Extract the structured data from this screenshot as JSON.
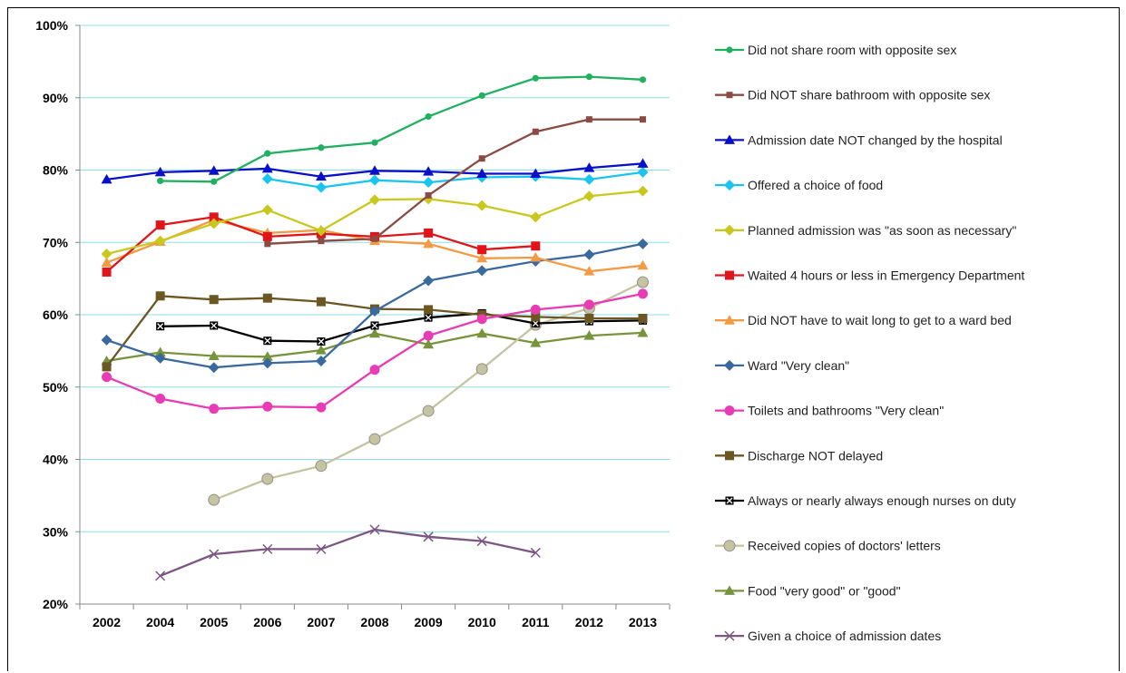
{
  "chart_data": {
    "type": "line",
    "title": "",
    "xlabel": "",
    "ylabel": "",
    "categories": [
      "2002",
      "2004",
      "2005",
      "2006",
      "2007",
      "2008",
      "2009",
      "2010",
      "2011",
      "2012",
      "2013"
    ],
    "ylim": [
      20,
      100
    ],
    "yticks": [
      "20%",
      "30%",
      "40%",
      "50%",
      "60%",
      "70%",
      "80%",
      "90%",
      "100%"
    ],
    "grid": true,
    "legend_position": "right",
    "series": [
      {
        "name": "Did not share room with opposite sex",
        "color": "#21b060",
        "marker": "circle-small",
        "values": [
          null,
          78.5,
          78.4,
          82.3,
          83.1,
          83.8,
          87.4,
          90.3,
          92.7,
          92.9,
          92.5
        ]
      },
      {
        "name": "Did NOT share bathroom with opposite sex",
        "color": "#8b4a43",
        "marker": "square-small",
        "values": [
          null,
          null,
          null,
          69.8,
          70.2,
          70.5,
          76.5,
          81.6,
          85.3,
          87.0,
          87.0
        ]
      },
      {
        "name": "Admission date NOT changed by the hospital",
        "color": "#0a10c8",
        "marker": "triangle",
        "values": [
          78.7,
          79.7,
          79.9,
          80.2,
          79.1,
          79.9,
          79.8,
          79.5,
          79.5,
          80.3,
          80.9
        ]
      },
      {
        "name": "Offered a choice of food",
        "color": "#1ac4f0",
        "marker": "diamond",
        "values": [
          null,
          null,
          null,
          78.8,
          77.6,
          78.6,
          78.3,
          79.0,
          79.1,
          78.7,
          79.7
        ]
      },
      {
        "name": "Planned admission was \"as soon as necessary\"",
        "color": "#c8c81e",
        "marker": "diamond",
        "values": [
          68.4,
          70.2,
          72.6,
          74.5,
          71.6,
          75.9,
          76.0,
          75.1,
          73.5,
          76.4,
          77.1
        ]
      },
      {
        "name": "Waited 4 hours or less in Emergency Department",
        "color": "#e0151a",
        "marker": "square",
        "values": [
          65.9,
          72.4,
          73.5,
          70.8,
          71.2,
          70.8,
          71.3,
          69.0,
          69.5,
          null,
          null
        ]
      },
      {
        "name": "Did NOT have to wait long to get to a ward bed",
        "color": "#f39a44",
        "marker": "triangle",
        "values": [
          67.2,
          70.1,
          73.1,
          71.3,
          71.7,
          70.2,
          69.8,
          67.8,
          67.9,
          66.0,
          66.8
        ]
      },
      {
        "name": "Ward \"Very clean\"",
        "color": "#3a6a9d",
        "marker": "diamond",
        "values": [
          56.5,
          54.0,
          52.7,
          53.3,
          53.6,
          60.5,
          64.7,
          66.1,
          67.4,
          68.3,
          69.8
        ]
      },
      {
        "name": "Toilets and bathrooms \"Very clean\"",
        "color": "#e83cb4",
        "marker": "circle",
        "values": [
          51.4,
          48.4,
          47.0,
          47.3,
          47.2,
          52.4,
          57.1,
          59.4,
          60.7,
          61.4,
          62.9
        ]
      },
      {
        "name": "Discharge NOT delayed",
        "color": "#6b5722",
        "marker": "square",
        "values": [
          52.8,
          62.6,
          62.1,
          62.3,
          61.8,
          60.8,
          60.7,
          60.0,
          59.7,
          59.5,
          59.5
        ]
      },
      {
        "name": "Always or nearly always enough nurses on duty",
        "color": "#000000",
        "marker": "square-x",
        "values": [
          null,
          58.4,
          58.5,
          56.4,
          56.3,
          58.5,
          59.6,
          60.2,
          58.8,
          59.1,
          59.2
        ]
      },
      {
        "name": "Received copies of doctors' letters",
        "color": "#c4c4a2",
        "marker": "circle-large",
        "values": [
          null,
          null,
          34.4,
          37.3,
          39.1,
          42.8,
          46.7,
          52.5,
          58.6,
          60.9,
          64.5
        ]
      },
      {
        "name": "Food \"very good\" or \"good\"",
        "color": "#77943d",
        "marker": "triangle",
        "values": [
          53.6,
          54.8,
          54.3,
          54.2,
          55.1,
          57.4,
          55.9,
          57.4,
          56.1,
          57.1,
          57.5
        ]
      },
      {
        "name": "Given a choice of admission dates",
        "color": "#7c5582",
        "marker": "x",
        "values": [
          null,
          23.9,
          26.9,
          27.6,
          27.6,
          30.3,
          29.3,
          28.7,
          27.1,
          null,
          null
        ]
      }
    ]
  }
}
